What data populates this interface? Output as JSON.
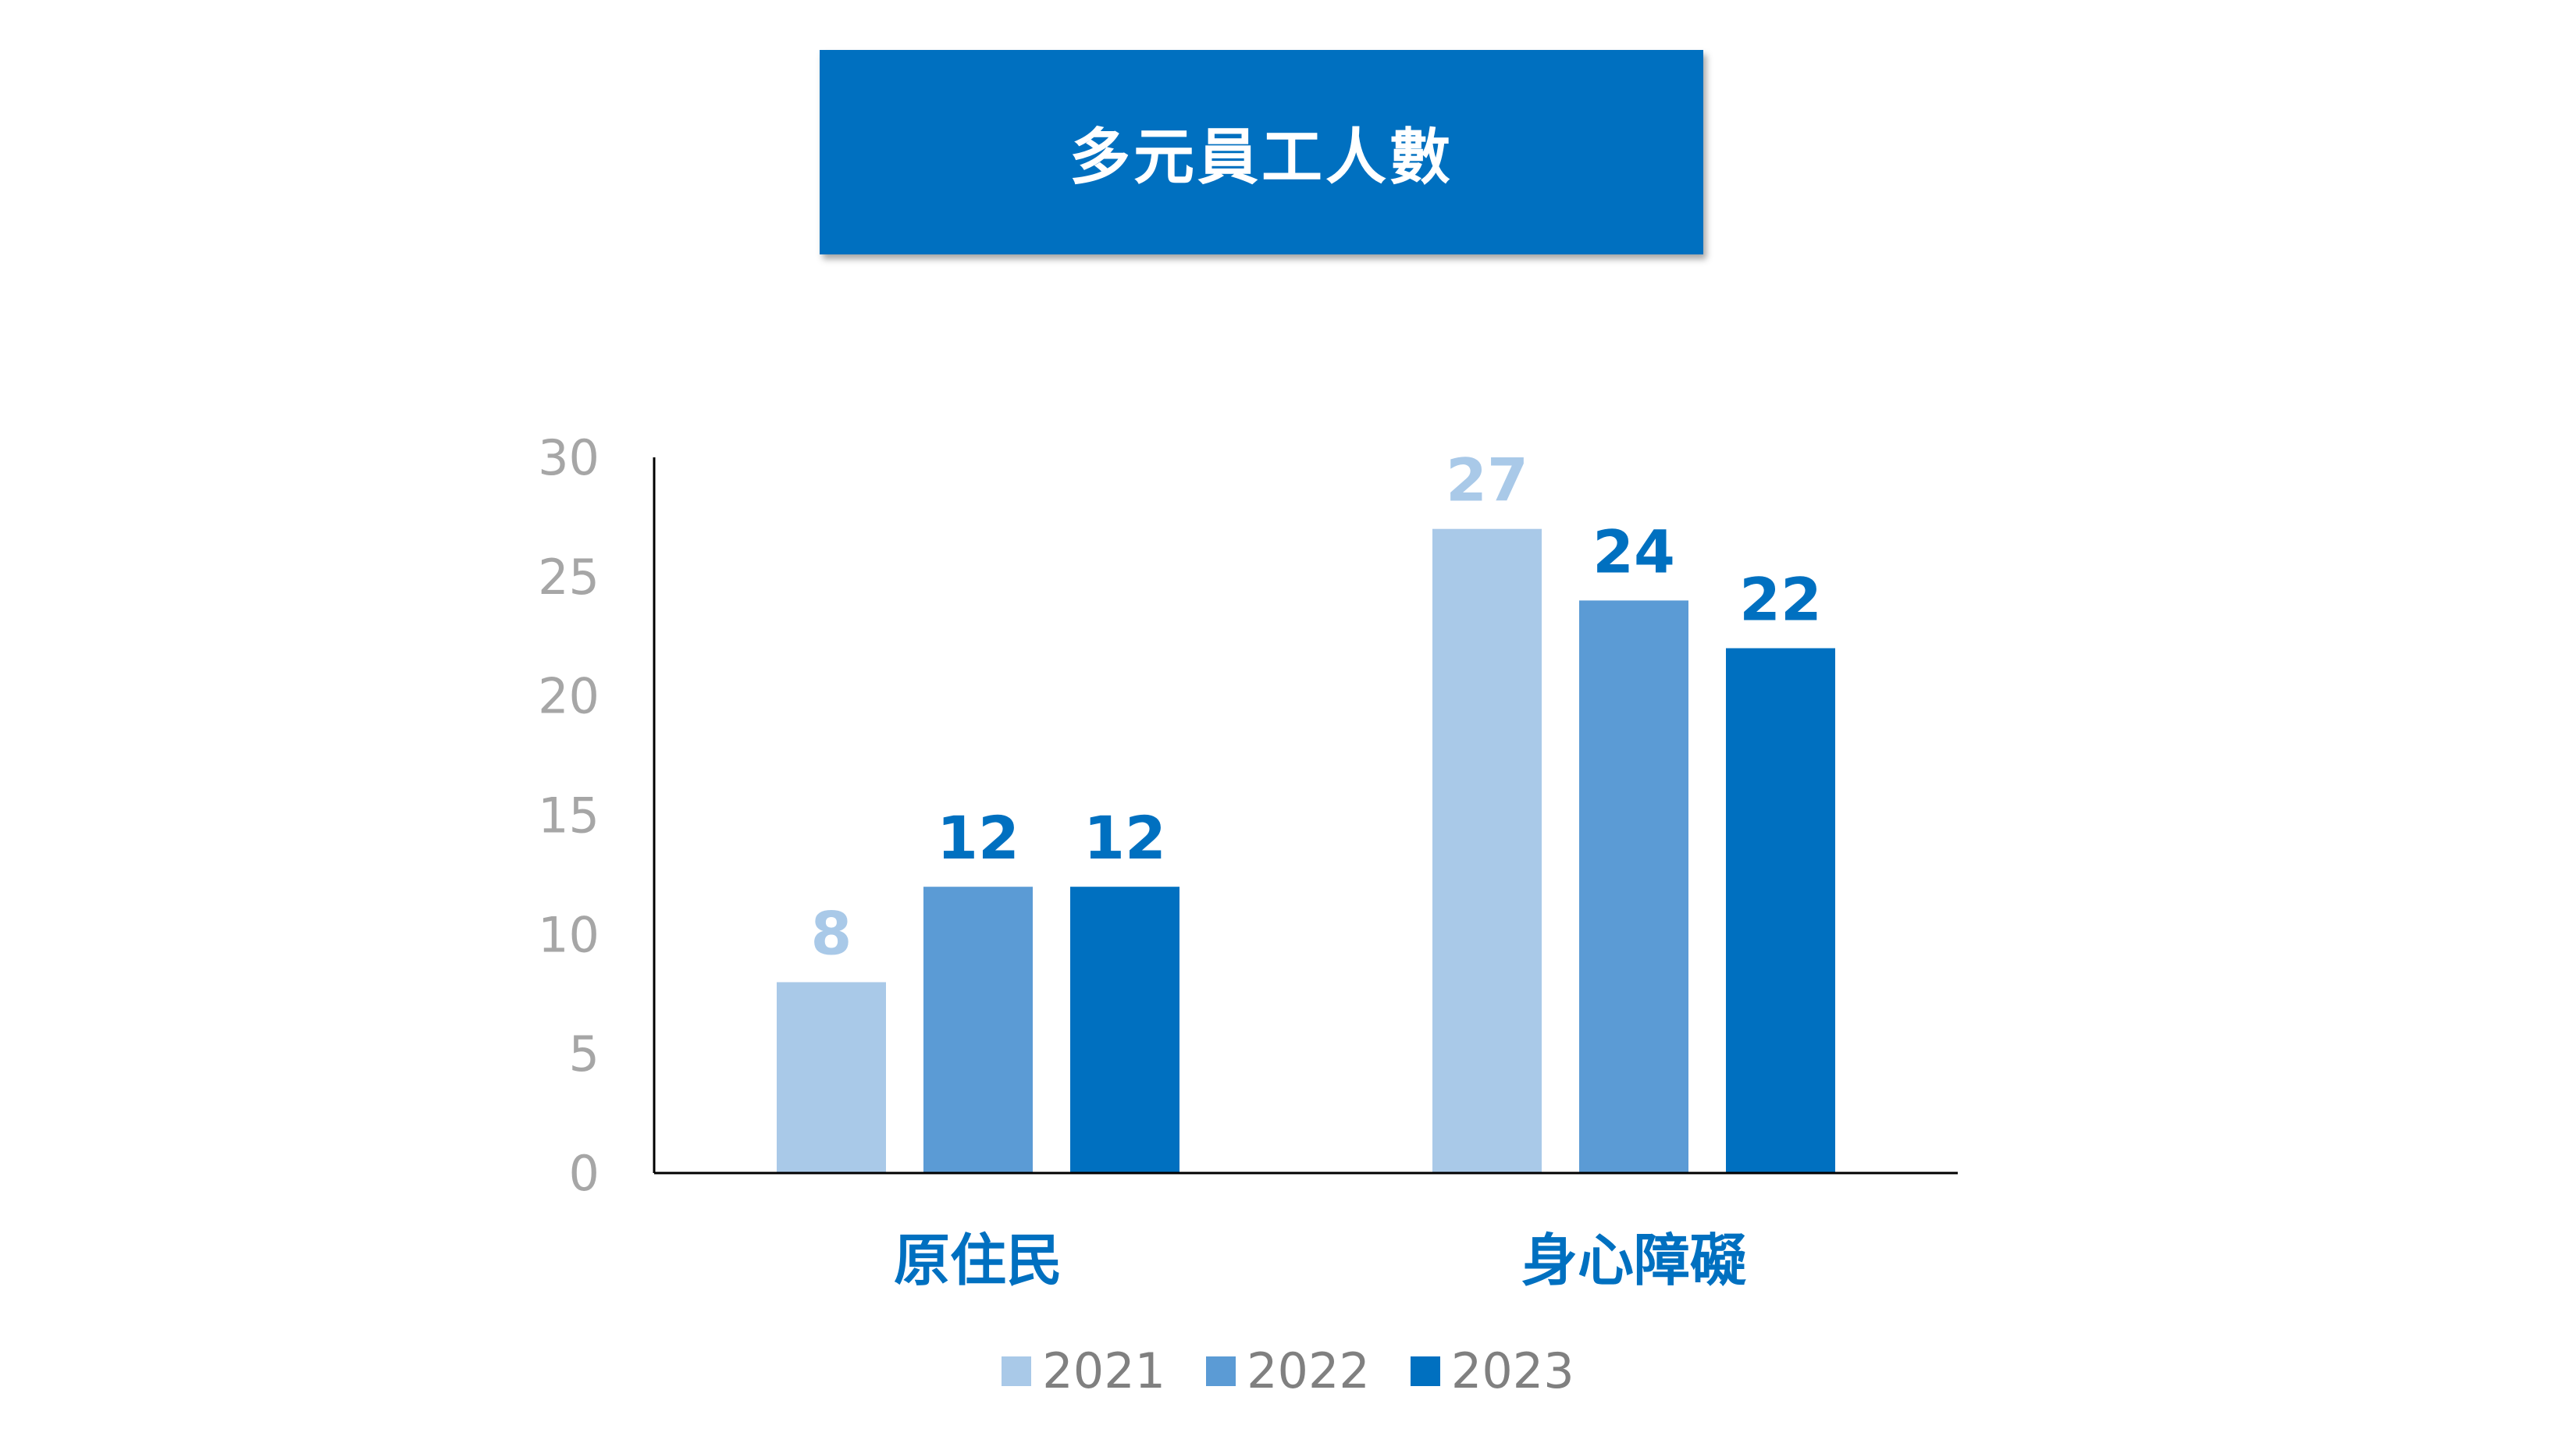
{
  "title": "多元員工人數",
  "colors": {
    "title_bg": "#0070c0",
    "tick_text": "#a6a6a6",
    "axis_line": "#000000",
    "category_text": "#0070c0"
  },
  "chart_data": {
    "type": "bar",
    "title": "多元員工人數",
    "categories": [
      "原住民",
      "身心障礙"
    ],
    "series": [
      {
        "name": "2021",
        "values": [
          8,
          27
        ],
        "color": "#a9c9e8",
        "label_color": "#a9c9e8"
      },
      {
        "name": "2022",
        "values": [
          12,
          24
        ],
        "color": "#5b9bd5",
        "label_color": "#0070c0"
      },
      {
        "name": "2023",
        "values": [
          12,
          22
        ],
        "color": "#0070c0",
        "label_color": "#0070c0"
      }
    ],
    "ylim": [
      0,
      30
    ],
    "yticks": [
      0,
      5,
      10,
      15,
      20,
      25,
      30
    ],
    "xlabel": "",
    "ylabel": "",
    "grid": false,
    "legend_position": "bottom"
  }
}
